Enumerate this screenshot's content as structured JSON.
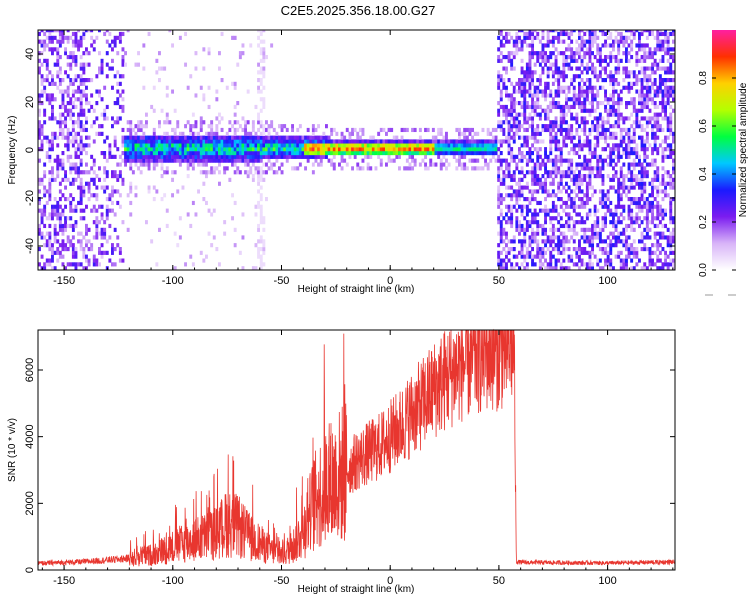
{
  "title": "C2E5.2025.356.18.00.G27",
  "chart_data": [
    {
      "type": "heatmap",
      "name": "spectrogram",
      "xlabel": "Height of straight line (km)",
      "ylabel": "Frequency (Hz)",
      "xlim": [
        -162,
        131
      ],
      "ylim": [
        -50,
        50
      ],
      "xticks": [
        -150,
        -100,
        -50,
        0,
        50,
        100
      ],
      "yticks": [
        -40,
        -20,
        0,
        20,
        40
      ],
      "colorbar": {
        "label": "Normalized spectral amplitude",
        "range": [
          0,
          1
        ],
        "ticks": [
          0.0,
          0.2,
          0.4,
          0.6,
          0.8
        ],
        "tick_labels": [
          "0.0",
          "0.2",
          "0.4",
          "0.6",
          "0.8"
        ],
        "colors": [
          "#ffffff",
          "#d8b4f8",
          "#7b1cf0",
          "#1a1aff",
          "#00c8ff",
          "#00ff40",
          "#b4ff00",
          "#ffd000",
          "#ff3000",
          "#ff1fa0"
        ]
      },
      "regions": [
        {
          "name": "noise-left",
          "x": [
            -162,
            -123
          ],
          "level": "low-scatter"
        },
        {
          "name": "signal-band",
          "x": [
            -123,
            49
          ],
          "center_hz": 0,
          "peak_x": [
            -40,
            15
          ]
        },
        {
          "name": "noise-right",
          "x": [
            49,
            131
          ],
          "level": "high-scatter"
        }
      ]
    },
    {
      "type": "line",
      "name": "snr",
      "xlabel": "Height of straight line (km)",
      "ylabel": "SNR (10 * v/v)",
      "xlim": [
        -162,
        131
      ],
      "ylim": [
        0,
        7200
      ],
      "xticks": [
        -150,
        -100,
        -50,
        0,
        50,
        100
      ],
      "yticks": [
        0,
        2000,
        4000,
        6000
      ],
      "color": "#e8362f",
      "series": [
        {
          "name": "SNR",
          "x": [
            -162,
            -140,
            -120,
            -110,
            -100,
            -90,
            -80,
            -75,
            -70,
            -65,
            -60,
            -55,
            -50,
            -45,
            -40,
            -35,
            -30,
            -25,
            -20,
            -15,
            -10,
            -5,
            0,
            5,
            10,
            15,
            20,
            25,
            30,
            35,
            40,
            45,
            50,
            55,
            57,
            58,
            60,
            80,
            100,
            120,
            131
          ],
          "y": [
            200,
            250,
            350,
            450,
            700,
            900,
            1100,
            1400,
            1300,
            1000,
            800,
            600,
            450,
            700,
            1200,
            2000,
            2500,
            2700,
            3000,
            3300,
            3500,
            3700,
            4000,
            4300,
            4700,
            5000,
            5400,
            5700,
            6000,
            6200,
            6400,
            6550,
            6600,
            6700,
            6800,
            250,
            230,
            220,
            210,
            230,
            240
          ]
        }
      ]
    }
  ]
}
